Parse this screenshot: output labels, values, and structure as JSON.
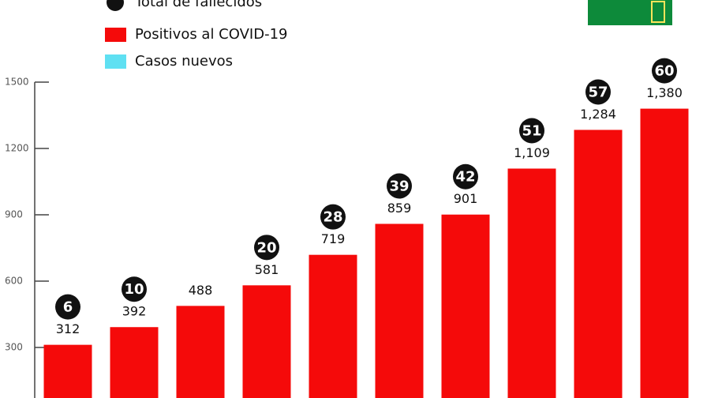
{
  "chart_data": {
    "type": "bar",
    "series": [
      {
        "name": "Total de fallecidos",
        "color": "#111111",
        "values": [
          6,
          10,
          null,
          20,
          28,
          39,
          42,
          51,
          57,
          60
        ]
      },
      {
        "name": "Positivos al COVID-19",
        "color": "#f50a0a",
        "values": [
          312,
          392,
          488,
          581,
          719,
          859,
          901,
          1109,
          1284,
          1380
        ],
        "value_labels": [
          "312",
          "392",
          "488",
          "581",
          "719",
          "859",
          "901",
          "1,109",
          "1,284",
          "1,380"
        ]
      },
      {
        "name": "Casos nuevos",
        "color": "#5fe0f2",
        "values": [
          null,
          null,
          null,
          null,
          null,
          null,
          null,
          null,
          null,
          null
        ]
      }
    ],
    "ylim": [
      0,
      1500
    ],
    "yticks": [
      300,
      600,
      900,
      1200,
      1500
    ]
  }
}
